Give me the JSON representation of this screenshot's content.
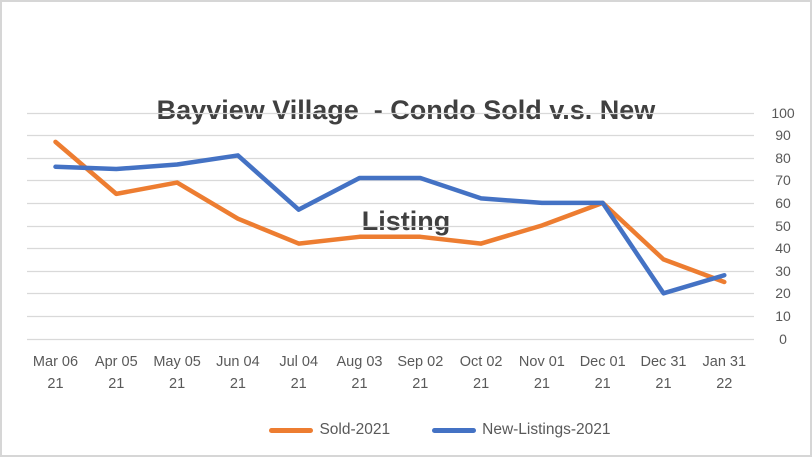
{
  "header": {
    "title_line1": "Bayview Village  - Condo Sold v.s. New",
    "title_line2": "Listing"
  },
  "chart_data": {
    "type": "line",
    "title": "Bayview Village  - Condo Sold v.s. New Listing",
    "categories": [
      "Mar 06 21",
      "Apr 05 21",
      "May 05 21",
      "Jun 04 21",
      "Jul 04 21",
      "Aug 03 21",
      "Sep 02 21",
      "Oct 02 21",
      "Nov 01 21",
      "Dec 01 21",
      "Dec 31 21",
      "Jan 31 22"
    ],
    "series": [
      {
        "name": "Sold-2021",
        "color": "#ED7D31",
        "values": [
          87,
          64,
          69,
          53,
          42,
          45,
          45,
          42,
          50,
          60,
          35,
          25
        ]
      },
      {
        "name": "New-Listings-2021",
        "color": "#4472C4",
        "values": [
          76,
          75,
          77,
          81,
          57,
          71,
          71,
          62,
          60,
          60,
          20,
          28
        ]
      }
    ],
    "y_axis": {
      "min": 0,
      "max": 100,
      "step": 10,
      "ticks": [
        0,
        10,
        20,
        30,
        40,
        50,
        60,
        70,
        80,
        90,
        100
      ],
      "side": "right"
    },
    "x_axis": {
      "label_lines": 2
    },
    "grid": "horizontal",
    "legend_position": "bottom",
    "colors": {
      "gridline": "#D9D9D9",
      "axis_text": "#595959",
      "title_text": "#404040",
      "frame_border": "#D6D6D6",
      "background": "#FFFFFF"
    }
  }
}
